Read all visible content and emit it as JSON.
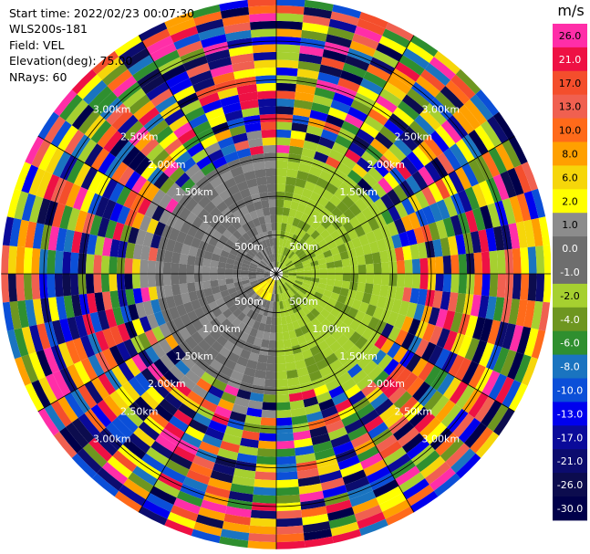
{
  "header": {
    "start_time": "Start time: 2022/02/23 00:07:30",
    "instrument": "WLS200s-181",
    "field": "Field: VEL",
    "elevation": "Elevation(deg): 75.00",
    "nrays": "NRays: 60"
  },
  "chart_data": {
    "type": "polar-ppi",
    "field": "VEL",
    "unit": "m/s",
    "n_rays": 60,
    "elevation_deg": 75.0,
    "range_rings_km": [
      "500m",
      "1.00km",
      "1.50km",
      "2.00km",
      "2.50km",
      "3.00km"
    ],
    "ring_values_km": [
      0.5,
      1.0,
      1.5,
      2.0,
      2.5,
      3.0
    ],
    "max_range_km": 3.55,
    "gate_spacing_km": 0.1,
    "first_gate_km": 0.1,
    "colorbar": {
      "levels": [
        "26.0",
        "21.0",
        "17.0",
        "13.0",
        "10.0",
        "8.0",
        "6.0",
        "2.0",
        "1.0",
        "0.0",
        "-1.0",
        "-2.0",
        "-4.0",
        "-6.0",
        "-8.0",
        "-10.0",
        "-13.0",
        "-17.0",
        "-21.0",
        "-26.0",
        "-30.0"
      ],
      "colors": [
        "#ff2ea8",
        "#ee1144",
        "#f44e2c",
        "#f06050",
        "#ff6a1a",
        "#ffa000",
        "#f6d60a",
        "#ffff00",
        "#8c8c8c",
        "#6e6e6e",
        "#6e6e6e",
        "#a6d030",
        "#6e9620",
        "#2f8f2f",
        "#1a74c0",
        "#0b4fd8",
        "#0000ee",
        "#0a0a9a",
        "#0c0c6e",
        "#0c0c4e",
        "#00004a"
      ]
    }
  }
}
